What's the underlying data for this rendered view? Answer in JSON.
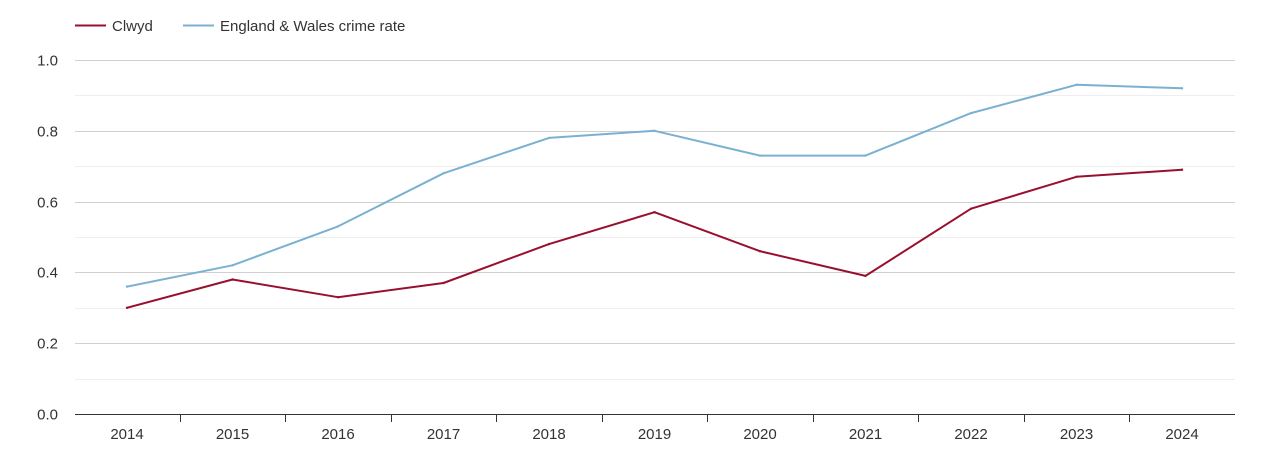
{
  "chart_data": {
    "type": "line",
    "title": "",
    "xlabel": "",
    "ylabel": "",
    "x": [
      "2014",
      "2015",
      "2016",
      "2017",
      "2018",
      "2019",
      "2020",
      "2021",
      "2022",
      "2023",
      "2024"
    ],
    "ylim": [
      0,
      1.0
    ],
    "yticks": [
      "0.0",
      "0.2",
      "0.4",
      "0.6",
      "0.8",
      "1.0"
    ],
    "grid": true,
    "legend_position": "top-left",
    "series": [
      {
        "name": "Clwyd",
        "color": "#99102f",
        "values": [
          0.3,
          0.38,
          0.33,
          0.37,
          0.48,
          0.57,
          0.46,
          0.39,
          0.58,
          0.67,
          0.69
        ]
      },
      {
        "name": "England & Wales crime rate",
        "color": "#7bb1d0",
        "values": [
          0.36,
          0.42,
          0.53,
          0.68,
          0.78,
          0.8,
          0.73,
          0.73,
          0.85,
          0.93,
          0.92
        ]
      }
    ]
  }
}
